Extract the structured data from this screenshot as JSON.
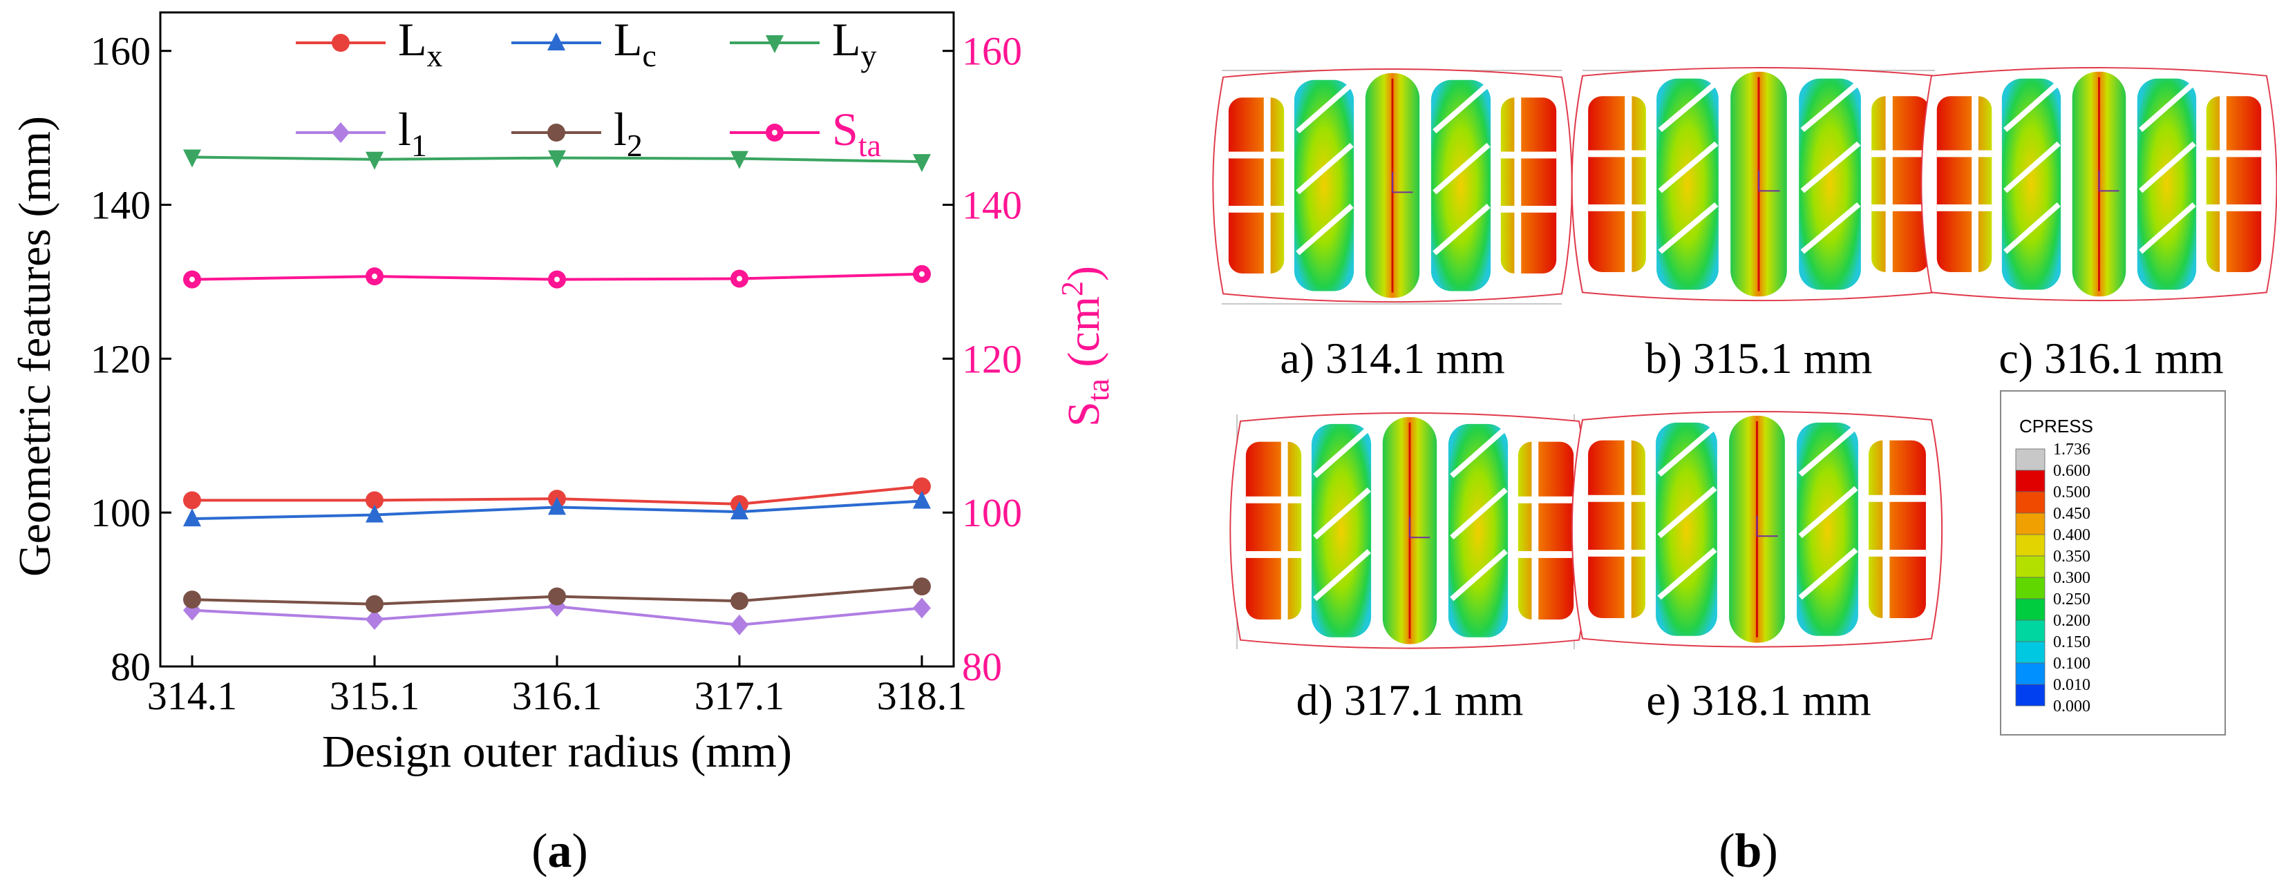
{
  "chart_data": [
    {
      "type": "line",
      "panel_label": "a",
      "xlabel": "Design outer radius (mm)",
      "ylabel": "Geometric features (mm)",
      "y2label": "S",
      "y2label_sub": "ta",
      "y2label_unit_pre": " (cm",
      "y2label_unit_sup": "2",
      "y2label_unit_post": ")",
      "x_categories": [
        "314.1",
        "315.1",
        "316.1",
        "317.1",
        "318.1"
      ],
      "ylim": [
        80,
        165
      ],
      "y2lim": [
        80,
        165
      ],
      "yticks": [
        80,
        100,
        120,
        140,
        160
      ],
      "y2ticks": [
        80,
        100,
        120,
        140,
        160
      ],
      "grid": false,
      "legend_position": "top",
      "series": [
        {
          "name": "L",
          "sub": "x",
          "color": "#e8413c",
          "marker": "circle",
          "axis": "left",
          "values": [
            101.6,
            101.6,
            101.8,
            101.1,
            103.4
          ]
        },
        {
          "name": "L",
          "sub": "c",
          "color": "#2b6bd1",
          "marker": "triangle-up",
          "axis": "left",
          "values": [
            99.2,
            99.7,
            100.7,
            100.1,
            101.5
          ]
        },
        {
          "name": "L",
          "sub": "y",
          "color": "#3aa561",
          "marker": "triangle-down",
          "axis": "left",
          "values": [
            146.2,
            145.9,
            146.1,
            146.0,
            145.6
          ]
        },
        {
          "name": "l",
          "sub": "1",
          "color": "#b07ee3",
          "marker": "diamond",
          "axis": "left",
          "values": [
            87.3,
            86.1,
            87.8,
            85.4,
            87.6
          ]
        },
        {
          "name": "l",
          "sub": "2",
          "color": "#7a5146",
          "marker": "circle",
          "axis": "left",
          "values": [
            88.7,
            88.1,
            89.1,
            88.5,
            90.4
          ]
        },
        {
          "name": "S",
          "sub": "ta",
          "color": "#ff1493",
          "marker": "circle-dot",
          "axis": "right",
          "values": [
            130.3,
            130.7,
            130.3,
            130.4,
            131.0
          ]
        }
      ]
    },
    {
      "type": "image-grid",
      "panel_label": "b",
      "subfigures": [
        {
          "label": "a) 314.1 mm"
        },
        {
          "label": "b) 315.1 mm"
        },
        {
          "label": "c) 316.1 mm"
        },
        {
          "label": "d) 317.1 mm"
        },
        {
          "label": "e) 318.1 mm"
        }
      ],
      "colorbar": {
        "title": "CPRESS",
        "ticks": [
          "1.736",
          "0.600",
          "0.500",
          "0.450",
          "0.400",
          "0.350",
          "0.300",
          "0.250",
          "0.200",
          "0.150",
          "0.100",
          "0.010",
          "0.000"
        ],
        "colors": [
          "#c8c8c8",
          "#e00000",
          "#f04a00",
          "#f0a000",
          "#e2d400",
          "#b4e000",
          "#60d800",
          "#00cc40",
          "#00d6a0",
          "#00c8e0",
          "#0090ff",
          "#0040f0"
        ]
      }
    }
  ],
  "captions": {
    "a": "a",
    "b": "b"
  }
}
